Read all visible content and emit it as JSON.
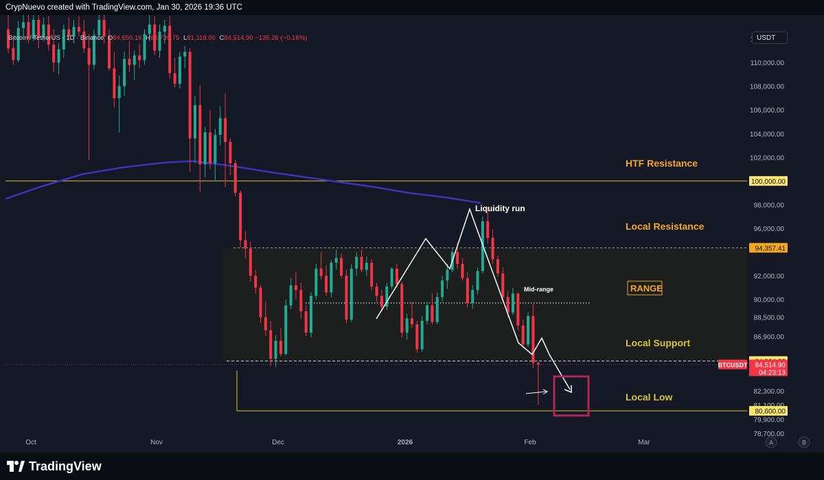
{
  "header": {
    "title": "CrypNuevo created with TradingView.com, Jan 30, 2026 19:36 UTC"
  },
  "symbol_legend": {
    "symbol": "Bitcoin / TetherUS · 1D · Binance",
    "o_label": "O",
    "o_value": "84,650.16",
    "h_label": "H",
    "h_value": "84,735.75",
    "l_label": "L",
    "l_value": "81,118.00",
    "c_label": "C",
    "c_value": "84,514.90",
    "change": "−135.26 (−0.16%)"
  },
  "currency_button": "USDT",
  "footer": {
    "brand": "TradingView",
    "scale_buttons": [
      "A",
      "B"
    ]
  },
  "colors": {
    "up": "#22ab94",
    "down": "#f23645",
    "ma": "#3b35b8",
    "annotation_orange": "#f5a623",
    "yellow_line": "#d8c23a",
    "box_purple": "#b0285a"
  },
  "chart_data": {
    "type": "candlestick",
    "symbol": "BTCUSDT",
    "interval": "1D",
    "ylim": [
      78700,
      114000
    ],
    "price_axis_ticks": [
      "112,000.00",
      "110,000.00",
      "108,000.00",
      "106,000.00",
      "104,000.00",
      "102,000.00",
      "98,000.00",
      "96,000.00",
      "92,000.00",
      "90,000.00",
      "88,500.00",
      "86,900.00",
      "82,300.00",
      "81,100.00",
      "79,900.00",
      "78,700.00"
    ],
    "time_axis_ticks": [
      "Oct",
      "Nov",
      "Dec",
      "2026",
      "Feb",
      "Mar"
    ],
    "price_labels": [
      {
        "text": "100,000.00",
        "value": 100000,
        "style": "yellow"
      },
      {
        "text": "94,357.41",
        "value": 94357.41,
        "style": "orange"
      },
      {
        "text": "84,804.23",
        "value": 84804.23,
        "style": "yellow"
      },
      {
        "text": "80,600.00",
        "value": 80600,
        "style": "yellow"
      }
    ],
    "current_price": {
      "ticker": "BTCUSDT",
      "price": "84,514.90",
      "countdown": "04:23:13",
      "value": 84514.9
    },
    "horizontal_levels": [
      {
        "name": "HTF Resistance",
        "value": 100000
      },
      {
        "name": "Local Resistance",
        "value": 94357.41
      },
      {
        "name": "Local Support",
        "value": 84804.23
      },
      {
        "name": "Local Low",
        "value": 80600
      }
    ],
    "annotations": {
      "htf_resistance": "HTF Resistance",
      "local_resistance": "Local Resistance",
      "range": "RANGE",
      "mid_range": "Mid-range",
      "local_support": "Local Support",
      "local_low": "Local Low",
      "liquidity_run": "Liquidity run"
    },
    "candles_ohlc": [
      [
        112800,
        114000,
        110800,
        111200
      ],
      [
        111200,
        112200,
        109800,
        110200
      ],
      [
        110200,
        113500,
        110000,
        112900
      ],
      [
        112900,
        114000,
        112200,
        113400
      ],
      [
        113400,
        114000,
        111600,
        112000
      ],
      [
        112000,
        114000,
        111800,
        113600
      ],
      [
        113600,
        114000,
        111200,
        112100
      ],
      [
        112100,
        113800,
        111800,
        113200
      ],
      [
        113200,
        113900,
        111000,
        111500
      ],
      [
        111500,
        112800,
        109200,
        110000
      ],
      [
        110000,
        111600,
        109000,
        111100
      ],
      [
        111100,
        113200,
        110400,
        112800
      ],
      [
        112800,
        113800,
        111800,
        112200
      ],
      [
        112200,
        113600,
        111600,
        113000
      ],
      [
        113000,
        113900,
        112200,
        112600
      ],
      [
        112600,
        113600,
        110800,
        111200
      ],
      [
        111200,
        112400,
        101800,
        109800
      ],
      [
        109800,
        112800,
        109400,
        112300
      ],
      [
        112300,
        114000,
        111900,
        113600
      ],
      [
        113600,
        114000,
        111600,
        112200
      ],
      [
        112200,
        112800,
        109300,
        109500
      ],
      [
        109500,
        110900,
        106200,
        107000
      ],
      [
        107000,
        108900,
        104100,
        108000
      ],
      [
        108000,
        110900,
        107200,
        110300
      ],
      [
        110300,
        111800,
        109200,
        109800
      ],
      [
        109800,
        111000,
        108500,
        110600
      ],
      [
        110600,
        111600,
        109500,
        110200
      ],
      [
        110200,
        112800,
        109800,
        112400
      ],
      [
        112400,
        114000,
        111800,
        113200
      ],
      [
        113200,
        113900,
        110600,
        111000
      ],
      [
        111000,
        113200,
        110400,
        112600
      ],
      [
        112600,
        113600,
        111600,
        113100
      ],
      [
        113100,
        113900,
        108600,
        109100
      ],
      [
        109100,
        110400,
        107900,
        108200
      ],
      [
        108200,
        110900,
        107800,
        110500
      ],
      [
        110500,
        111400,
        109500,
        110900
      ],
      [
        110900,
        111200,
        100800,
        103600
      ],
      [
        103600,
        107200,
        101500,
        106400
      ],
      [
        106400,
        108100,
        99100,
        101400
      ],
      [
        101400,
        104600,
        100300,
        104100
      ],
      [
        104100,
        106000,
        101000,
        101500
      ],
      [
        101500,
        104400,
        100000,
        103900
      ],
      [
        103900,
        106300,
        103000,
        105300
      ],
      [
        105300,
        107400,
        99500,
        103300
      ],
      [
        103300,
        103600,
        100500,
        101500
      ],
      [
        101500,
        101800,
        98700,
        99000
      ],
      [
        99000,
        99200,
        94400,
        95000
      ],
      [
        95000,
        95800,
        93500,
        94300
      ],
      [
        94300,
        94900,
        91500,
        92000
      ],
      [
        92000,
        92500,
        90500,
        91000
      ],
      [
        91000,
        91200,
        88000,
        88500
      ],
      [
        88500,
        89800,
        86900,
        87400
      ],
      [
        87400,
        88200,
        84400,
        85000
      ],
      [
        85000,
        87000,
        84300,
        86500
      ],
      [
        86500,
        87600,
        85200,
        85400
      ],
      [
        85400,
        90000,
        85300,
        89500
      ],
      [
        89500,
        91800,
        89200,
        91200
      ],
      [
        91200,
        92300,
        90000,
        90800
      ],
      [
        90800,
        91400,
        88400,
        89000
      ],
      [
        89000,
        89500,
        86900,
        87200
      ],
      [
        87200,
        90600,
        86800,
        90300
      ],
      [
        90300,
        93000,
        90000,
        92600
      ],
      [
        92600,
        94000,
        91700,
        92000
      ],
      [
        92000,
        92900,
        90300,
        90600
      ],
      [
        90600,
        93300,
        90200,
        93100
      ],
      [
        93100,
        94200,
        92500,
        93500
      ],
      [
        93500,
        93900,
        91800,
        92000
      ],
      [
        92000,
        92500,
        88000,
        88300
      ],
      [
        88300,
        93000,
        88100,
        92600
      ],
      [
        92600,
        94000,
        92000,
        93600
      ],
      [
        93600,
        94200,
        92300,
        92500
      ],
      [
        92500,
        93600,
        92000,
        93100
      ],
      [
        93100,
        93400,
        90800,
        91100
      ],
      [
        91100,
        91400,
        89800,
        90300
      ],
      [
        90300,
        90800,
        89000,
        89400
      ],
      [
        89400,
        91400,
        89100,
        91100
      ],
      [
        91100,
        92700,
        90900,
        92600
      ],
      [
        92600,
        93000,
        91000,
        91300
      ],
      [
        91300,
        91500,
        86800,
        87200
      ],
      [
        87200,
        88800,
        86600,
        88400
      ],
      [
        88400,
        89800,
        87600,
        87900
      ],
      [
        87900,
        88200,
        85500,
        85800
      ],
      [
        85800,
        88600,
        85600,
        88200
      ],
      [
        88200,
        89800,
        87900,
        89500
      ],
      [
        89500,
        90500,
        87900,
        88100
      ],
      [
        88100,
        90600,
        87900,
        90200
      ],
      [
        90200,
        92000,
        89800,
        91600
      ],
      [
        91600,
        93000,
        90900,
        92500
      ],
      [
        92500,
        94400,
        92300,
        94000
      ],
      [
        94000,
        94800,
        92600,
        93000
      ],
      [
        93000,
        93500,
        91600,
        91800
      ],
      [
        91800,
        92300,
        89300,
        89700
      ],
      [
        89700,
        91200,
        89200,
        90800
      ],
      [
        90800,
        92700,
        90400,
        92400
      ],
      [
        92400,
        97000,
        92200,
        96600
      ],
      [
        96600,
        97800,
        94700,
        95200
      ],
      [
        95200,
        95900,
        93000,
        93400
      ],
      [
        93400,
        93700,
        91900,
        92200
      ],
      [
        92200,
        92700,
        89800,
        90200
      ],
      [
        90200,
        90700,
        88500,
        88900
      ],
      [
        88900,
        91000,
        88700,
        90500
      ],
      [
        90500,
        90600,
        87400,
        87800
      ],
      [
        87800,
        88300,
        85900,
        86200
      ],
      [
        86200,
        88900,
        86000,
        88600
      ],
      [
        88600,
        89600,
        84200,
        84650
      ],
      [
        84650,
        84736,
        81118,
        84515
      ]
    ]
  }
}
